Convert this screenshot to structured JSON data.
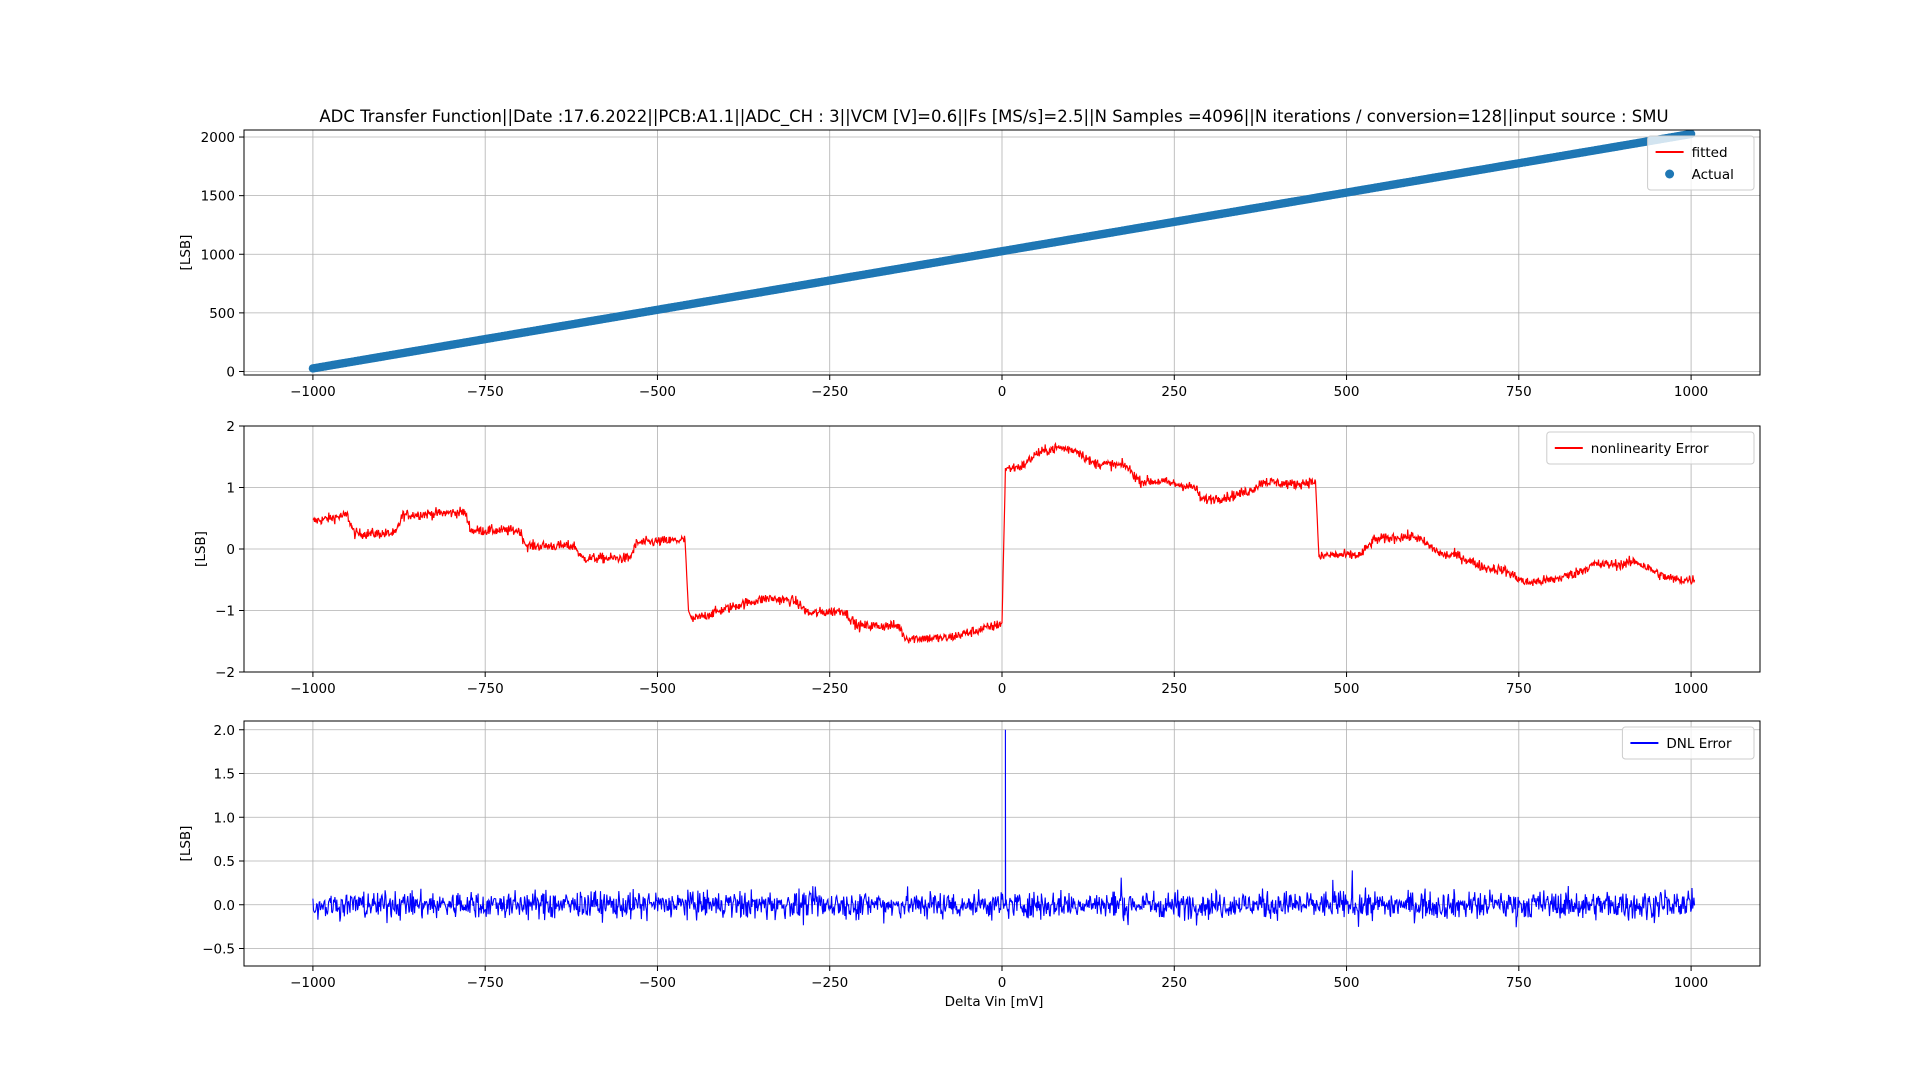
{
  "chart_data": [
    {
      "type": "line",
      "title": "ADC Transfer Function||Date :17.6.2022||PCB:A1.1||ADC_CH : 3||VCM [V]=0.6||Fs [MS/s]=2.5||N Samples =4096||N iterations / conversion=128||input source : SMU",
      "xlabel": "",
      "ylabel": "[LSB]",
      "xlim": [
        -1100,
        1100
      ],
      "ylim": [
        -30,
        2060
      ],
      "xticks": [
        "−1000",
        "−750",
        "−500",
        "−250",
        "0",
        "250",
        "500",
        "750",
        "1000"
      ],
      "xtick_values": [
        -1000,
        -750,
        -500,
        -250,
        0,
        250,
        500,
        750,
        1000
      ],
      "yticks": [
        "0",
        "500",
        "1000",
        "1500",
        "2000"
      ],
      "ytick_values": [
        0,
        500,
        1000,
        1500,
        2000
      ],
      "grid": true,
      "legend_position": "top-right",
      "series": [
        {
          "name": "fitted",
          "kind": "line",
          "color": "#ff0000",
          "x": [
            -1000,
            1000
          ],
          "y": [
            26,
            2026
          ]
        },
        {
          "name": "Actual",
          "kind": "scatter",
          "color": "#1f77b4",
          "x": [
            -1000,
            1000
          ],
          "y": [
            26,
            2026
          ]
        }
      ]
    },
    {
      "type": "line",
      "title": "",
      "xlabel": "",
      "ylabel": "[LSB]",
      "xlim": [
        -1100,
        1100
      ],
      "ylim": [
        -2,
        2
      ],
      "xticks": [
        "−1000",
        "−750",
        "−500",
        "−250",
        "0",
        "250",
        "500",
        "750",
        "1000"
      ],
      "xtick_values": [
        -1000,
        -750,
        -500,
        -250,
        0,
        250,
        500,
        750,
        1000
      ],
      "yticks": [
        "−2",
        "−1",
        "0",
        "1",
        "2"
      ],
      "ytick_values": [
        -2,
        -1,
        0,
        1,
        2
      ],
      "grid": true,
      "legend_position": "top-right",
      "series": [
        {
          "name": "nonlinearity Error",
          "color": "#ff0000",
          "noise": 0.08,
          "x": [
            -1000,
            -950,
            -940,
            -880,
            -870,
            -780,
            -770,
            -700,
            -690,
            -620,
            -610,
            -540,
            -530,
            -460,
            -455,
            -450,
            -380,
            -340,
            -300,
            -280,
            -230,
            -210,
            -150,
            -140,
            -80,
            -10,
            0,
            5,
            30,
            50,
            80,
            110,
            130,
            180,
            200,
            230,
            280,
            290,
            330,
            360,
            380,
            420,
            455,
            460,
            470,
            520,
            540,
            580,
            600,
            640,
            660,
            700,
            730,
            760,
            800,
            830,
            860,
            900,
            920,
            960,
            980,
            1005
          ],
          "y": [
            0.45,
            0.55,
            0.25,
            0.25,
            0.55,
            0.6,
            0.3,
            0.3,
            0.05,
            0.05,
            -0.15,
            -0.15,
            0.1,
            0.15,
            -1.0,
            -1.15,
            -0.9,
            -0.8,
            -0.85,
            -1.05,
            -1.0,
            -1.25,
            -1.25,
            -1.45,
            -1.45,
            -1.25,
            -1.2,
            1.3,
            1.35,
            1.55,
            1.65,
            1.6,
            1.4,
            1.35,
            1.1,
            1.1,
            1.0,
            0.8,
            0.85,
            0.95,
            1.1,
            1.05,
            1.1,
            -0.15,
            -0.1,
            -0.1,
            0.15,
            0.2,
            0.2,
            -0.1,
            -0.1,
            -0.3,
            -0.35,
            -0.55,
            -0.5,
            -0.4,
            -0.25,
            -0.25,
            -0.2,
            -0.45,
            -0.5,
            -0.5
          ]
        }
      ]
    },
    {
      "type": "line",
      "title": "",
      "xlabel": "Delta Vin [mV]",
      "ylabel": "[LSB]",
      "xlim": [
        -1100,
        1100
      ],
      "ylim": [
        -0.7,
        2.1
      ],
      "xticks": [
        "−1000",
        "−750",
        "−500",
        "−250",
        "0",
        "250",
        "500",
        "750",
        "1000"
      ],
      "xtick_values": [
        -1000,
        -750,
        -500,
        -250,
        0,
        250,
        500,
        750,
        1000
      ],
      "yticks": [
        "−0.5",
        "0.0",
        "0.5",
        "1.0",
        "1.5",
        "2.0"
      ],
      "ytick_values": [
        -0.5,
        0.0,
        0.5,
        1.0,
        1.5,
        2.0
      ],
      "grid": true,
      "legend_position": "top-right",
      "series": [
        {
          "name": "DNL Error",
          "color": "#0000ff",
          "noise": 0.15,
          "x_range": [
            -1000,
            1005
          ],
          "spikes": [
            {
              "x": 5,
              "y": 2.0
            }
          ]
        }
      ]
    }
  ]
}
